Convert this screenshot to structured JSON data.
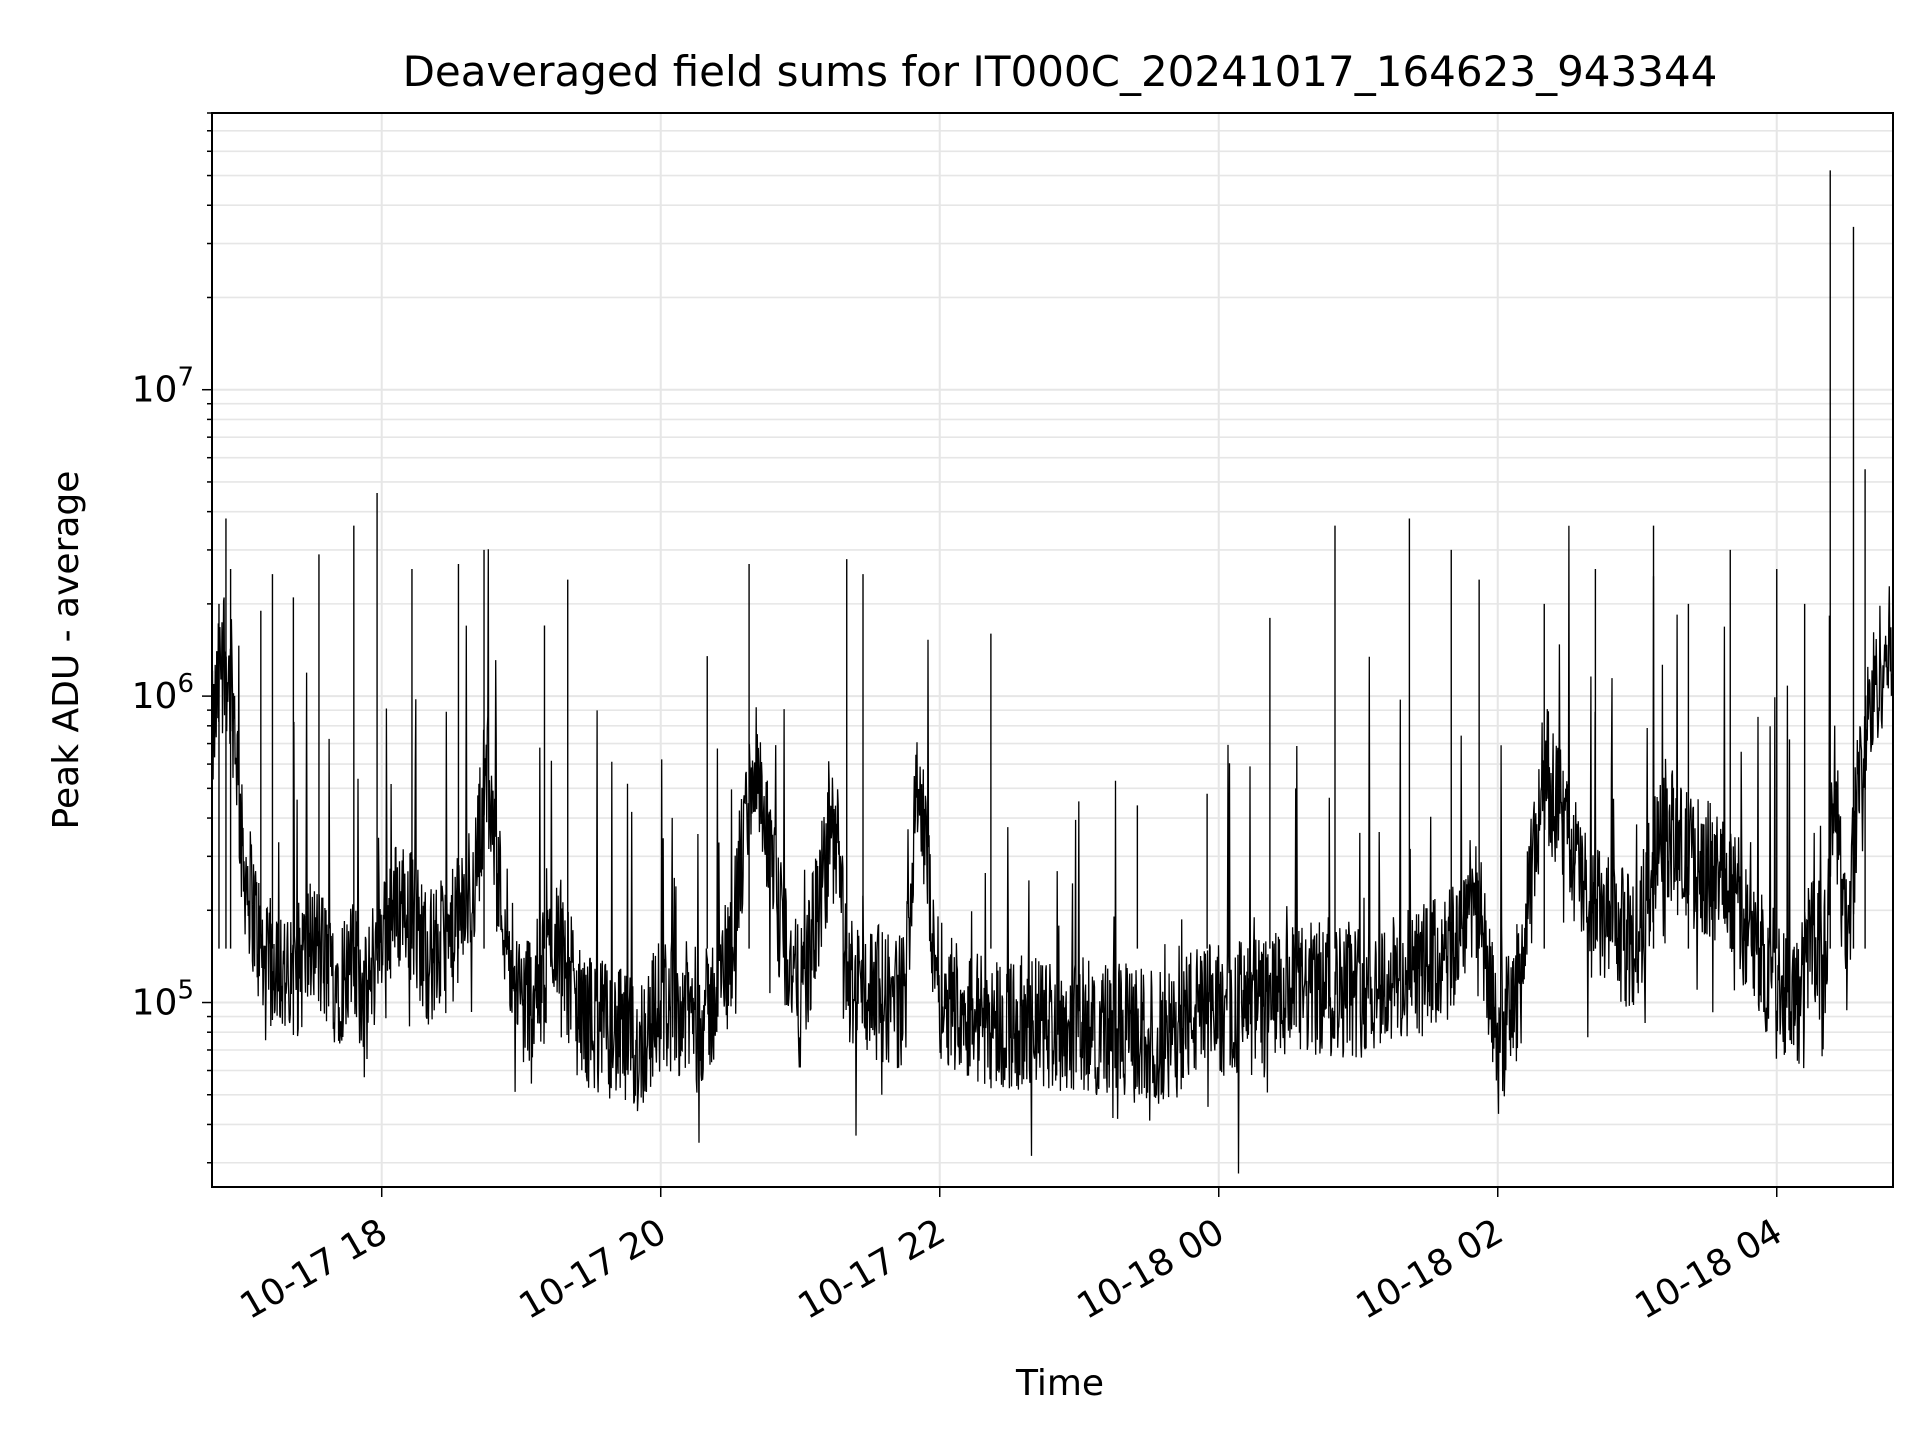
{
  "chart_data": {
    "type": "line",
    "title": "Deaveraged field sums for IT000C_20241017_164623_943344",
    "xlabel": "Time",
    "ylabel": "Peak ADU - average",
    "yscale": "log",
    "ylim": [
      25000,
      80000000
    ],
    "xlim": [
      "2024-10-17 16:47",
      "2024-10-18 04:50"
    ],
    "grid": true,
    "line_color": "#000000",
    "grid_color": "#e6e6e6",
    "x_ticks": [
      {
        "t": "2024-10-17 18:00",
        "label": "10-17 18"
      },
      {
        "t": "2024-10-17 20:00",
        "label": "10-17 20"
      },
      {
        "t": "2024-10-17 22:00",
        "label": "10-17 22"
      },
      {
        "t": "2024-10-18 00:00",
        "label": "10-18 00"
      },
      {
        "t": "2024-10-18 02:00",
        "label": "10-18 02"
      },
      {
        "t": "2024-10-18 04:00",
        "label": "10-18 04"
      }
    ],
    "y_ticks": [
      {
        "value": 100000,
        "base": "10",
        "exp": "5"
      },
      {
        "value": 1000000,
        "base": "10",
        "exp": "6"
      },
      {
        "value": 10000000,
        "base": "10",
        "exp": "7"
      }
    ],
    "series": [
      {
        "x": [
          "2024-10-17 16:47",
          "2024-10-17 16:52",
          "2024-10-17 16:57",
          "2024-10-17 17:00",
          "2024-10-17 17:05",
          "2024-10-17 17:10",
          "2024-10-17 17:15",
          "2024-10-17 17:20",
          "2024-10-17 17:30",
          "2024-10-17 17:40",
          "2024-10-17 17:50",
          "2024-10-17 17:52",
          "2024-10-17 18:00",
          "2024-10-17 18:10",
          "2024-10-17 18:20",
          "2024-10-17 18:30",
          "2024-10-17 18:40",
          "2024-10-17 18:45",
          "2024-10-17 18:50",
          "2024-10-17 19:00",
          "2024-10-17 19:10",
          "2024-10-17 19:15",
          "2024-10-17 19:25",
          "2024-10-17 19:40",
          "2024-10-17 19:50",
          "2024-10-17 20:00",
          "2024-10-17 20:20",
          "2024-10-17 20:30",
          "2024-10-17 20:40",
          "2024-10-17 20:50",
          "2024-10-17 21:00",
          "2024-10-17 21:10",
          "2024-10-17 21:15",
          "2024-10-17 21:20",
          "2024-10-17 21:30",
          "2024-10-17 21:45",
          "2024-10-17 21:50",
          "2024-10-17 22:00",
          "2024-10-17 22:15",
          "2024-10-17 22:30",
          "2024-10-17 23:00",
          "2024-10-17 23:20",
          "2024-10-17 23:40",
          "2024-10-17 23:45",
          "2024-10-18 00:00",
          "2024-10-18 00:20",
          "2024-10-18 00:40",
          "2024-10-18 01:00",
          "2024-10-18 01:20",
          "2024-10-18 01:40",
          "2024-10-18 01:50",
          "2024-10-18 02:00",
          "2024-10-18 02:10",
          "2024-10-18 02:20",
          "2024-10-18 02:40",
          "2024-10-18 03:00",
          "2024-10-18 03:10",
          "2024-10-18 03:20",
          "2024-10-18 03:40",
          "2024-10-18 03:50",
          "2024-10-18 04:00",
          "2024-10-18 04:10",
          "2024-10-18 04:15",
          "2024-10-18 04:20",
          "2024-10-18 04:25",
          "2024-10-18 04:30",
          "2024-10-18 04:35",
          "2024-10-18 04:40",
          "2024-10-18 04:45",
          "2024-10-18 04:50"
        ],
        "y": [
          700000,
          1500000,
          800000,
          300000,
          200000,
          120000,
          150000,
          110000,
          160000,
          120000,
          130000,
          90000,
          180000,
          220000,
          140000,
          160000,
          250000,
          600000,
          250000,
          100000,
          120000,
          180000,
          90000,
          80000,
          70000,
          100000,
          90000,
          150000,
          600000,
          200000,
          100000,
          250000,
          400000,
          120000,
          110000,
          100000,
          600000,
          110000,
          90000,
          85000,
          85000,
          80000,
          75000,
          90000,
          95000,
          100000,
          110000,
          110000,
          120000,
          140000,
          250000,
          70000,
          120000,
          600000,
          200000,
          150000,
          400000,
          300000,
          250000,
          150000,
          120000,
          100000,
          180000,
          120000,
          500000,
          150000,
          500000,
          900000,
          1300000,
          1400000
        ]
      }
    ],
    "spikes": [
      {
        "t": "2024-10-17 16:50",
        "y": 2000000
      },
      {
        "t": "2024-10-17 16:53",
        "y": 3800000
      },
      {
        "t": "2024-10-17 16:55",
        "y": 2600000
      },
      {
        "t": "2024-10-17 17:08",
        "y": 1900000
      },
      {
        "t": "2024-10-17 17:13",
        "y": 2500000
      },
      {
        "t": "2024-10-17 17:22",
        "y": 2100000
      },
      {
        "t": "2024-10-17 17:33",
        "y": 2900000
      },
      {
        "t": "2024-10-17 17:48",
        "y": 3600000
      },
      {
        "t": "2024-10-17 17:58",
        "y": 4600000
      },
      {
        "t": "2024-10-17 18:13",
        "y": 2600000
      },
      {
        "t": "2024-10-17 18:33",
        "y": 2700000
      },
      {
        "t": "2024-10-17 18:44",
        "y": 3000000
      },
      {
        "t": "2024-10-17 19:10",
        "y": 1700000
      },
      {
        "t": "2024-10-17 19:20",
        "y": 2400000
      },
      {
        "t": "2024-10-17 20:20",
        "y": 1350000
      },
      {
        "t": "2024-10-17 20:38",
        "y": 2700000
      },
      {
        "t": "2024-10-17 21:20",
        "y": 2800000
      },
      {
        "t": "2024-10-17 21:27",
        "y": 2500000
      },
      {
        "t": "2024-10-17 22:22",
        "y": 1600000
      },
      {
        "t": "2024-10-17 23:25",
        "y": 440000
      },
      {
        "t": "2024-10-17 23:55",
        "y": 480000
      },
      {
        "t": "2024-10-18 00:22",
        "y": 1800000
      },
      {
        "t": "2024-10-18 00:50",
        "y": 3600000
      },
      {
        "t": "2024-10-18 01:22",
        "y": 3800000
      },
      {
        "t": "2024-10-18 01:40",
        "y": 3000000
      },
      {
        "t": "2024-10-18 01:52",
        "y": 2400000
      },
      {
        "t": "2024-10-18 02:20",
        "y": 2000000
      },
      {
        "t": "2024-10-18 02:42",
        "y": 2600000
      },
      {
        "t": "2024-10-18 03:07",
        "y": 3600000
      },
      {
        "t": "2024-10-18 03:22",
        "y": 2000000
      },
      {
        "t": "2024-10-18 03:40",
        "y": 3000000
      },
      {
        "t": "2024-10-18 04:00",
        "y": 2600000
      },
      {
        "t": "2024-10-18 04:12",
        "y": 2000000
      },
      {
        "t": "2024-10-18 04:23",
        "y": 52000000
      },
      {
        "t": "2024-10-18 04:33",
        "y": 34000000
      },
      {
        "t": "2024-10-18 04:38",
        "y": 5500000
      }
    ]
  }
}
